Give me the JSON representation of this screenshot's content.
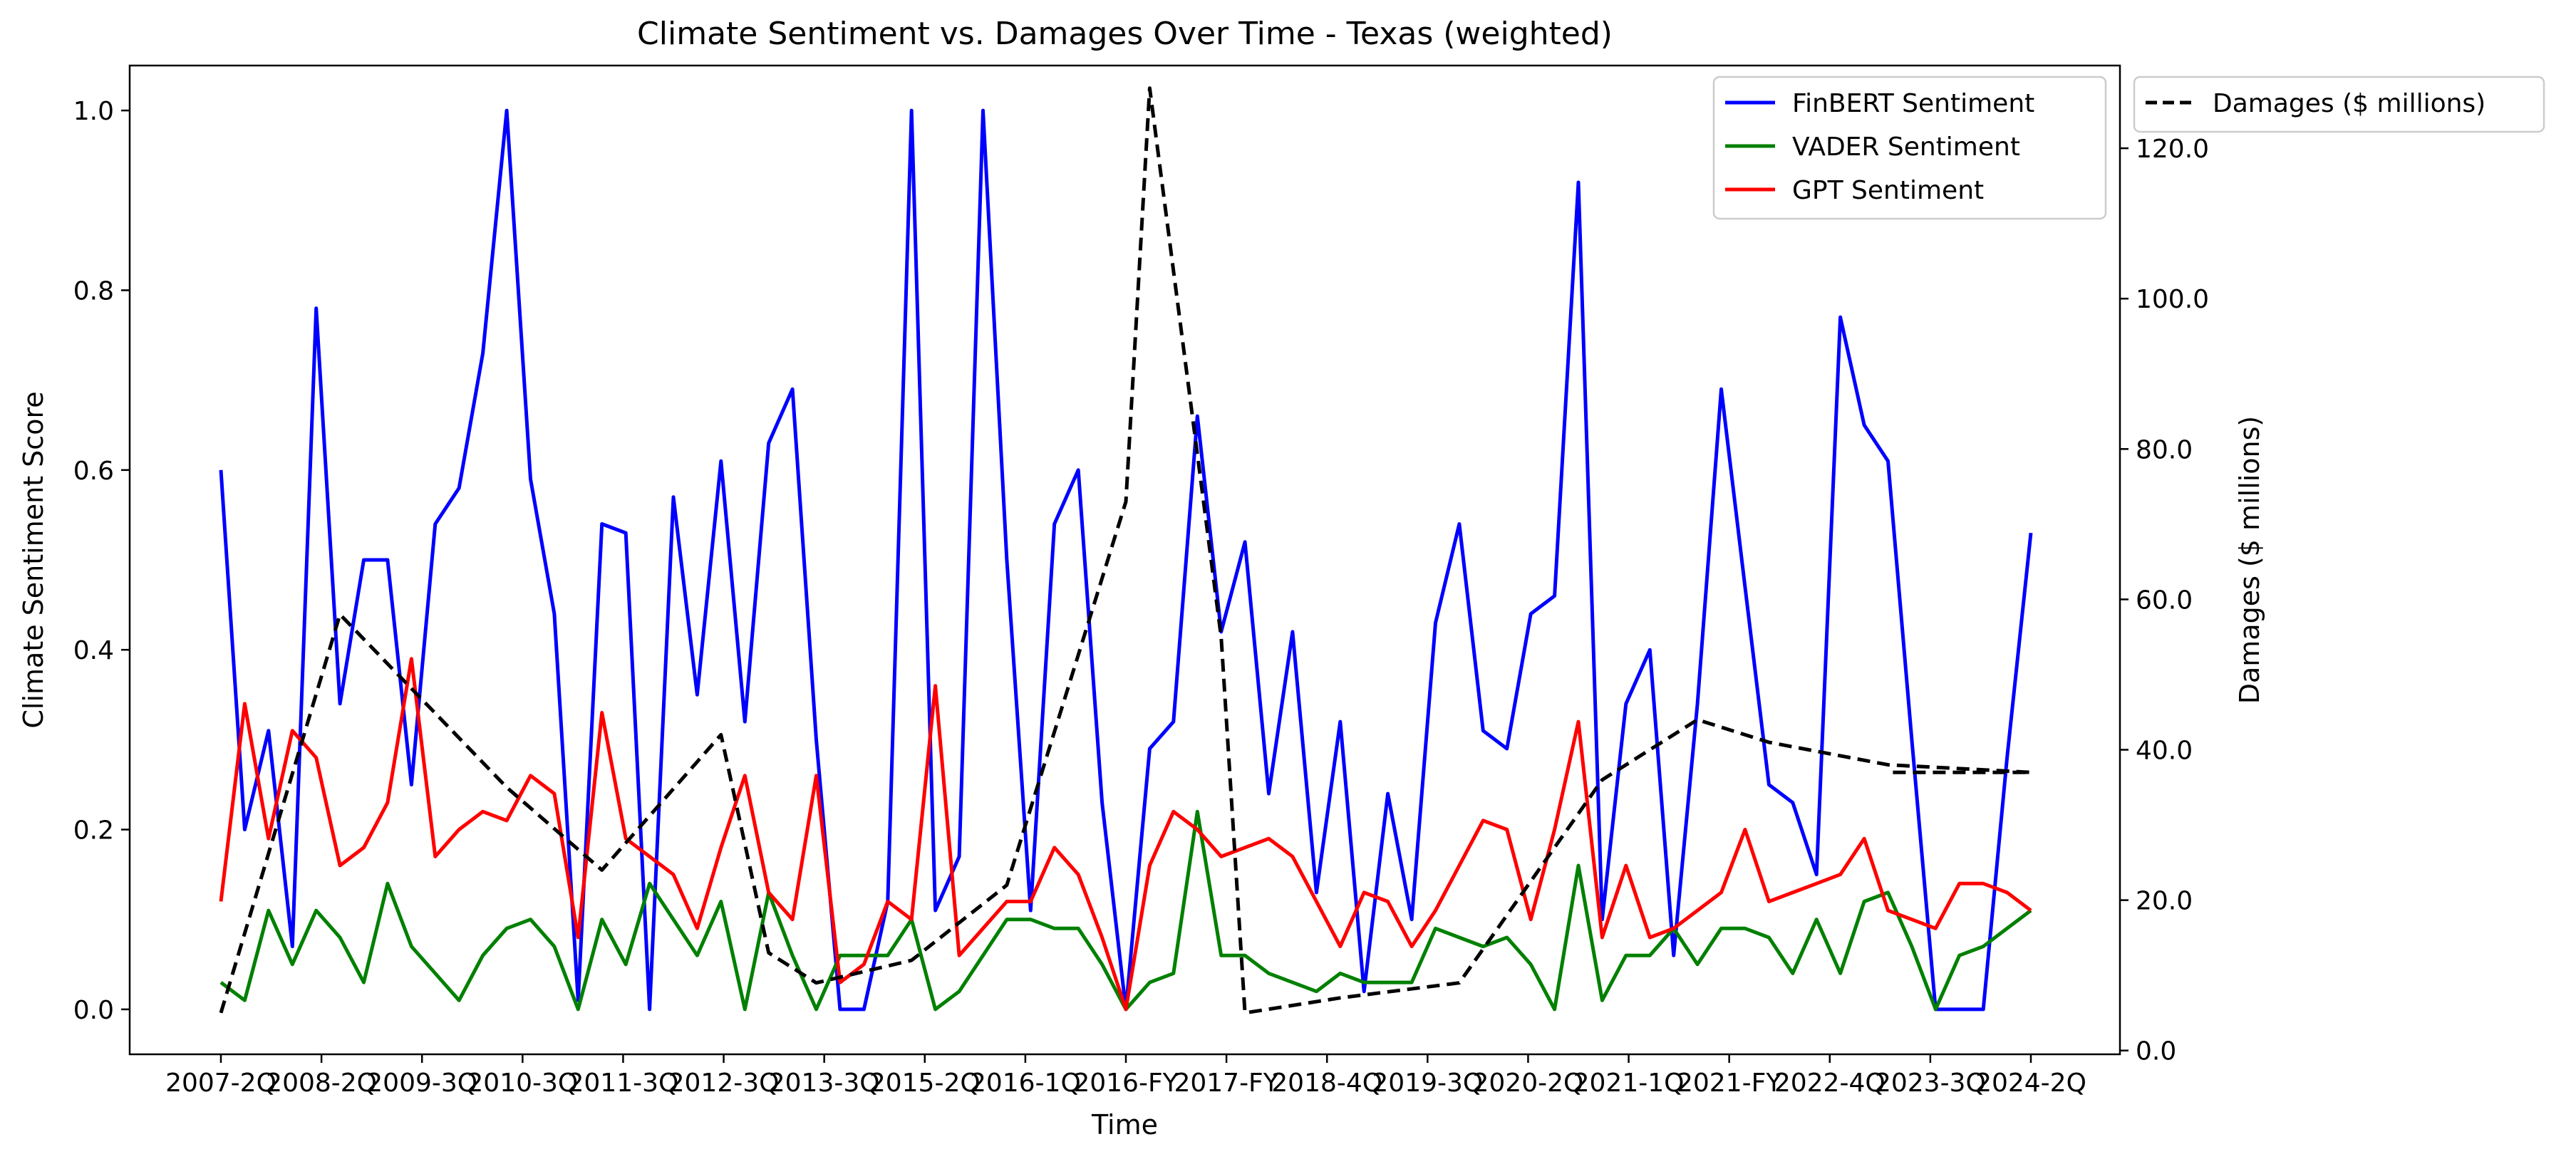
{
  "chart_data": {
    "type": "line",
    "title": "Climate Sentiment vs. Damages Over Time - Texas (weighted)",
    "xlabel": "Time",
    "ylabel": "Climate Sentiment Score",
    "y2label": "Damages ($ millions)",
    "ylim": [
      -0.05,
      1.05
    ],
    "y2lim": [
      -0.5,
      131
    ],
    "yticks": [
      "0.0",
      "0.2",
      "0.4",
      "0.6",
      "0.8",
      "1.0"
    ],
    "y2ticks": [
      "0.0",
      "20.0",
      "40.0",
      "60.0",
      "80.0",
      "100.0",
      "120.0"
    ],
    "xtick_labels": [
      "2007-2Q",
      "2008-2Q",
      "2009-3Q",
      "2010-3Q",
      "2011-3Q",
      "2012-3Q",
      "2013-3Q",
      "2015-2Q",
      "2016-1Q",
      "2016-FY",
      "2017-FY",
      "2018-4Q",
      "2019-3Q",
      "2020-2Q",
      "2021-1Q",
      "2021-FY",
      "2022-4Q",
      "2023-3Q",
      "2024-2Q"
    ],
    "legend_left_position": "top-right inside plot",
    "legend_right_position": "outside right, top",
    "legend_left": [
      "FinBERT Sentiment",
      "VADER Sentiment",
      "GPT Sentiment"
    ],
    "legend_right": [
      "Damages ($ millions)"
    ],
    "series": [
      {
        "name": "FinBERT Sentiment",
        "axis": "left",
        "color": "#0000ff",
        "style": "solid",
        "values": [
          0.6,
          0.2,
          0.31,
          0.07,
          0.78,
          0.34,
          0.5,
          0.5,
          0.25,
          0.54,
          0.58,
          0.73,
          1.0,
          0.59,
          0.44,
          0.01,
          0.54,
          0.53,
          0.0,
          0.57,
          0.35,
          0.61,
          0.32,
          0.63,
          0.69,
          0.3,
          0.0,
          0.0,
          0.12,
          1.0,
          0.11,
          0.17,
          1.0,
          0.5,
          0.11,
          0.54,
          0.6,
          0.23,
          0.0,
          0.29,
          0.32,
          0.66,
          0.42,
          0.52,
          0.24,
          0.42,
          0.13,
          0.32,
          0.02,
          0.24,
          0.1,
          0.43,
          0.54,
          0.31,
          0.29,
          0.44,
          0.46,
          0.92,
          0.1,
          0.34,
          0.4,
          0.06,
          0.34,
          0.69,
          0.47,
          0.25,
          0.23,
          0.15,
          0.77,
          0.65,
          0.61,
          0.3,
          0.0,
          0.0,
          0.0,
          0.28,
          0.53
        ],
        "x_start": 0,
        "x_step": 1
      },
      {
        "name": "VADER Sentiment",
        "axis": "left",
        "color": "#008000",
        "style": "solid",
        "values": [
          0.03,
          0.01,
          0.11,
          0.05,
          0.11,
          0.08,
          0.03,
          0.14,
          0.07,
          0.04,
          0.01,
          0.06,
          0.09,
          0.1,
          0.07,
          0.0,
          0.1,
          0.05,
          0.14,
          0.1,
          0.06,
          0.12,
          0.0,
          0.13,
          0.06,
          0.0,
          0.06,
          0.06,
          0.06,
          0.1,
          0.0,
          0.02,
          0.06,
          0.1,
          0.1,
          0.09,
          0.09,
          0.05,
          0.0,
          0.03,
          0.04,
          0.22,
          0.06,
          0.06,
          0.04,
          0.03,
          0.02,
          0.04,
          0.03,
          0.03,
          0.03,
          0.09,
          0.08,
          0.07,
          0.08,
          0.05,
          0.0,
          0.16,
          0.01,
          0.06,
          0.06,
          0.09,
          0.05,
          0.09,
          0.09,
          0.08,
          0.04,
          0.1,
          0.04,
          0.12,
          0.13,
          0.07,
          0.0,
          0.06,
          0.07,
          0.09,
          0.11
        ],
        "x_start": 0,
        "x_step": 1
      },
      {
        "name": "GPT Sentiment",
        "axis": "left",
        "color": "#ff0000",
        "style": "solid",
        "values": [
          0.12,
          0.34,
          0.19,
          0.31,
          0.28,
          0.16,
          0.18,
          0.23,
          0.39,
          0.17,
          0.2,
          0.22,
          0.21,
          0.26,
          0.24,
          0.08,
          0.33,
          0.19,
          0.17,
          0.15,
          0.09,
          0.18,
          0.26,
          0.13,
          0.1,
          0.26,
          0.03,
          0.05,
          0.12,
          0.1,
          0.36,
          0.06,
          0.09,
          0.12,
          0.12,
          0.18,
          0.15,
          0.08,
          0.0,
          0.16,
          0.22,
          0.2,
          0.17,
          0.18,
          0.19,
          0.17,
          0.12,
          0.07,
          0.13,
          0.12,
          0.07,
          0.11,
          0.16,
          0.21,
          0.2,
          0.1,
          0.2,
          0.32,
          0.08,
          0.16,
          0.08,
          0.09,
          0.11,
          0.13,
          0.2,
          0.12,
          0.13,
          0.14,
          0.15,
          0.19,
          0.11,
          0.1,
          0.09,
          0.14,
          0.14,
          0.13,
          0.11
        ],
        "x_start": 0,
        "x_step": 1
      },
      {
        "name": "Damages ($ millions)",
        "axis": "right",
        "color": "#000000",
        "style": "dashed",
        "points": [
          [
            0,
            5
          ],
          [
            5,
            58
          ],
          [
            12,
            35
          ],
          [
            16,
            24
          ],
          [
            21,
            42
          ],
          [
            23,
            13
          ],
          [
            25,
            9
          ],
          [
            29,
            12
          ],
          [
            33,
            22
          ],
          [
            38,
            73
          ],
          [
            39,
            128
          ],
          [
            42,
            55
          ],
          [
            43,
            5
          ],
          [
            47,
            7
          ],
          [
            52,
            9
          ],
          [
            58,
            36
          ],
          [
            62,
            44
          ],
          [
            65,
            41
          ],
          [
            70,
            38
          ],
          [
            76,
            37
          ],
          [
            70,
            37
          ]
        ]
      }
    ]
  }
}
